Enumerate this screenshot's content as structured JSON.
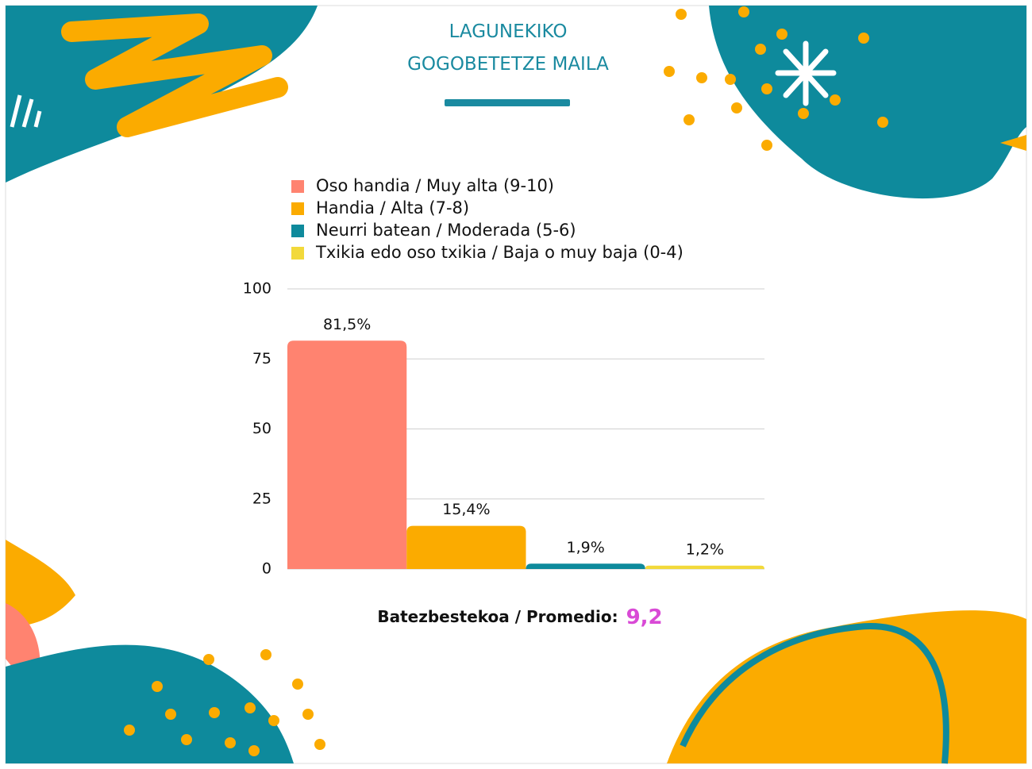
{
  "chart_data": {
    "type": "bar",
    "title": "LAGUNEKIKO GOGOBETETZE MAILA",
    "series": [
      {
        "name": "Oso handia / Muy alta (9-10)",
        "color": "#ff8370",
        "values": [
          81.5
        ],
        "value_labels": [
          "81,5%"
        ]
      },
      {
        "name": "Handia / Alta (7-8)",
        "color": "#fbab00",
        "values": [
          15.4
        ],
        "value_labels": [
          "15,4%"
        ]
      },
      {
        "name": "Neurri batean / Moderada (5-6)",
        "color": "#0e8a9c",
        "values": [
          1.9
        ],
        "value_labels": [
          "1,9%"
        ]
      },
      {
        "name": "Txikia edo oso txikia / Baja o muy baja (0-4)",
        "color": "#f2d93b",
        "values": [
          1.2
        ],
        "value_labels": [
          "1,2%"
        ]
      }
    ],
    "ylim": [
      0,
      100
    ],
    "yticks": [
      0,
      25,
      50,
      75,
      100
    ],
    "grid": true,
    "average": {
      "text": "Batezbestekoa / Promedio:",
      "value": {
        "value": 9.2,
        "label": "9,2"
      }
    }
  }
}
